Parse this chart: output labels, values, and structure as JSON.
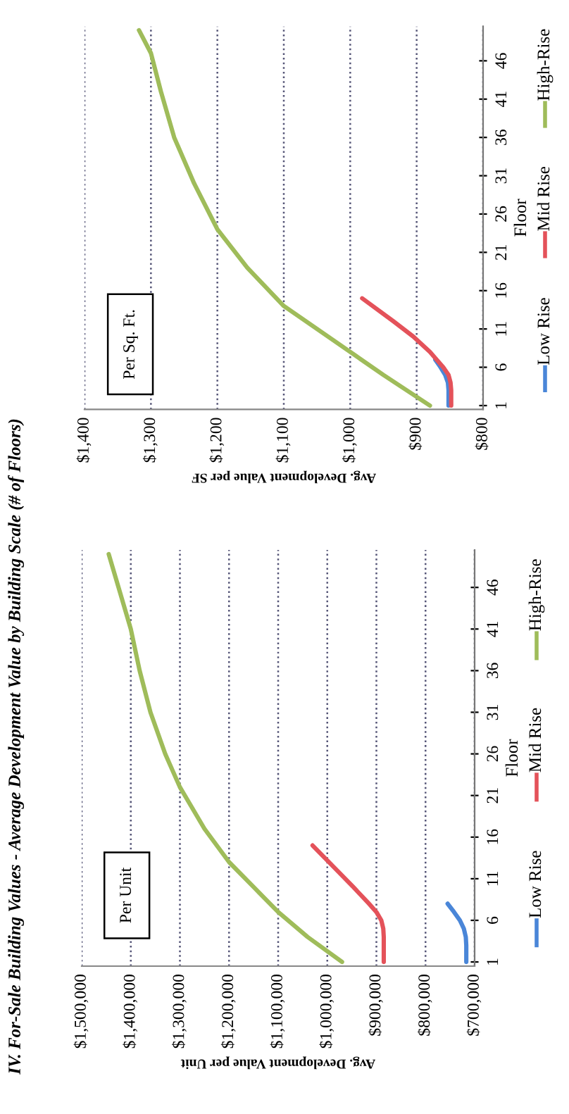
{
  "chart_data": [
    {
      "type": "line",
      "title": "IV. For-Sale Building Values - Average Development Value by Building Scale (# of Floors)",
      "xlabel": "Avg. Development Value per Unit",
      "ylabel": "Floor",
      "annotations": [
        "Per Unit"
      ],
      "ylim": [
        0.5,
        50.5
      ],
      "yticks": [
        1,
        6,
        11,
        16,
        21,
        26,
        31,
        36,
        41,
        46
      ],
      "xlim": [
        1500000,
        700000
      ],
      "xticks": [
        {
          "value": 700000,
          "label": "$700,000"
        },
        {
          "value": 800000,
          "label": "$800,000"
        },
        {
          "value": 900000,
          "label": "$900,000"
        },
        {
          "value": 1000000,
          "label": "$1,000,000"
        },
        {
          "value": 1100000,
          "label": "$1,100,000"
        },
        {
          "value": 1200000,
          "label": "$1,200,000"
        },
        {
          "value": 1300000,
          "label": "$1,300,000"
        },
        {
          "value": 1400000,
          "label": "$1,400,000"
        },
        {
          "value": 1500000,
          "label": "$1,500,000"
        }
      ],
      "grid": "x",
      "legend": "right",
      "series": [
        {
          "name": "Low Rise",
          "color": "#4a86d8",
          "values": [
            1,
            2,
            3,
            4,
            5,
            6,
            7,
            8
          ],
          "x": [
            717000,
            717000,
            717000,
            718000,
            722000,
            730000,
            742000,
            755000
          ]
        },
        {
          "name": "Mid Rise",
          "color": "#e4525a",
          "values": [
            1,
            2,
            3,
            4,
            5,
            6,
            7,
            8,
            10,
            12,
            15
          ],
          "x": [
            885000,
            885000,
            885000,
            885000,
            886000,
            890000,
            900000,
            915000,
            947000,
            980000,
            1030000
          ]
        },
        {
          "name": "High-Rise",
          "color": "#9fbc5a",
          "values": [
            1,
            4,
            7,
            10,
            13,
            17,
            22,
            26,
            31,
            36,
            41,
            46,
            50
          ],
          "x": [
            970000,
            1040000,
            1100000,
            1150000,
            1200000,
            1250000,
            1300000,
            1330000,
            1360000,
            1382000,
            1400000,
            1425000,
            1445000
          ]
        }
      ]
    },
    {
      "type": "line",
      "xlabel": "Avg. Development Value per SF",
      "ylabel": "Floor",
      "annotations": [
        "Per Sq. Ft."
      ],
      "ylim": [
        0.5,
        50.5
      ],
      "yticks": [
        1,
        6,
        11,
        16,
        21,
        26,
        31,
        36,
        41,
        46
      ],
      "xlim": [
        1400,
        800
      ],
      "xticks": [
        {
          "value": 800,
          "label": "$800"
        },
        {
          "value": 900,
          "label": "$900"
        },
        {
          "value": 1000,
          "label": "$1,000"
        },
        {
          "value": 1100,
          "label": "$1,100"
        },
        {
          "value": 1200,
          "label": "$1,200"
        },
        {
          "value": 1300,
          "label": "$1,300"
        },
        {
          "value": 1400,
          "label": "$1,400"
        }
      ],
      "grid": "x",
      "legend": "right",
      "series": [
        {
          "name": "Low Rise",
          "color": "#4a86d8",
          "values": [
            1,
            2,
            3,
            4,
            5,
            6,
            7
          ],
          "x": [
            852,
            852,
            852,
            853,
            857,
            864,
            872
          ]
        },
        {
          "name": "Mid Rise",
          "color": "#e4525a",
          "values": [
            1,
            2,
            3,
            4,
            5,
            6,
            8,
            10,
            12,
            15
          ],
          "x": [
            848,
            848,
            848,
            849,
            852,
            860,
            880,
            905,
            935,
            982
          ]
        },
        {
          "name": "High-Rise",
          "color": "#9fbc5a",
          "values": [
            1,
            5,
            8,
            14,
            19,
            24,
            30,
            36,
            42,
            47,
            50
          ],
          "x": [
            880,
            950,
            1000,
            1100,
            1155,
            1200,
            1235,
            1265,
            1285,
            1300,
            1318
          ]
        }
      ]
    }
  ]
}
